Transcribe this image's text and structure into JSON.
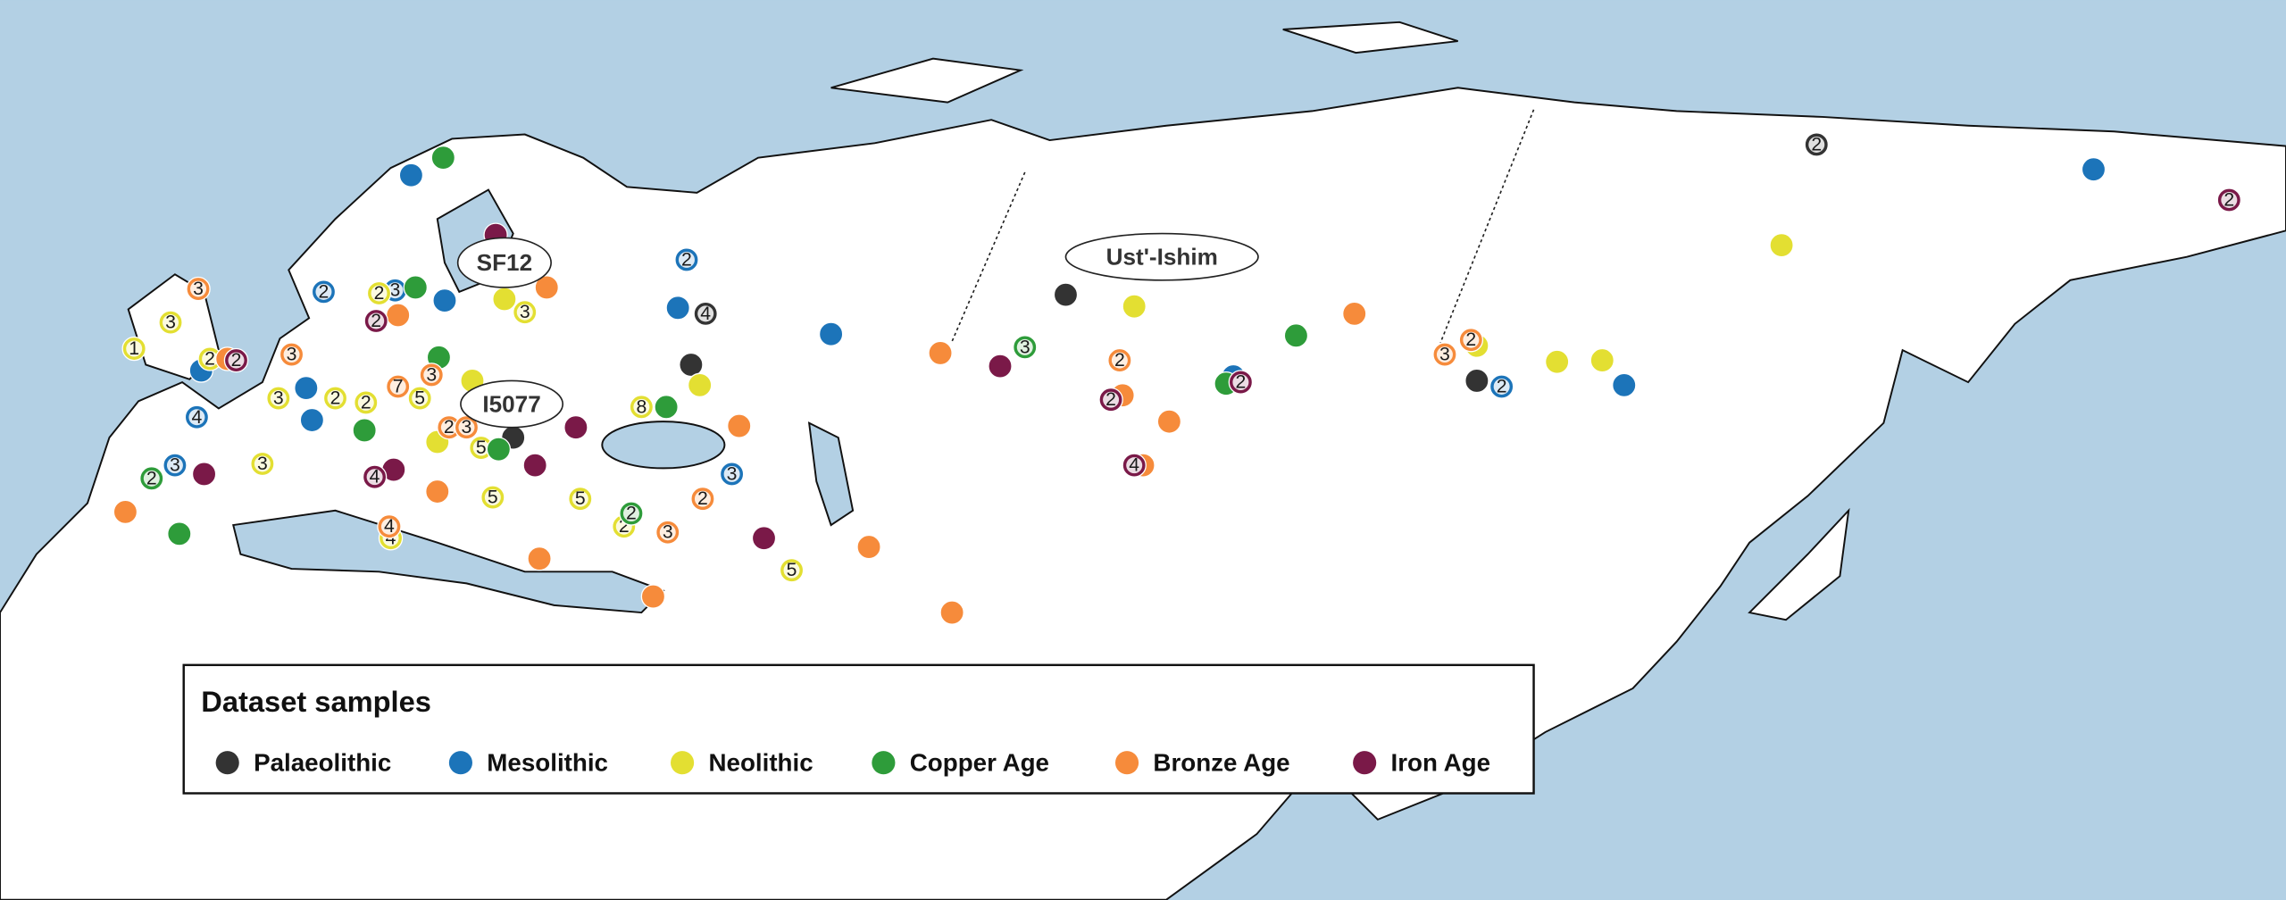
{
  "legend": {
    "title": "Dataset samples",
    "items": [
      {
        "label": "Palaeolithic",
        "color": "#333333",
        "samples": [
          null,
          4,
          null,
          null,
          null,
          2
        ]
      },
      {
        "label": "Mesolithic",
        "color": "#1c74b9",
        "samples": [
          null,
          2,
          null,
          2,
          3,
          null,
          null,
          null,
          null,
          null,
          4,
          3,
          3,
          null,
          2,
          null,
          null
        ]
      },
      {
        "label": "Neolithic",
        "color": "#e3df32",
        "samples": [
          null,
          null,
          3,
          null,
          null,
          null,
          5,
          5,
          5,
          2,
          5,
          null,
          null,
          null,
          2,
          2,
          5,
          3,
          1,
          2,
          3,
          3,
          4,
          8,
          2,
          null
        ]
      },
      {
        "label": "Copper Age",
        "color": "#2e9c3a",
        "samples": [
          null,
          null,
          3,
          null,
          null,
          null,
          null,
          null,
          2,
          null,
          2,
          null
        ]
      },
      {
        "label": "Bronze Age",
        "color": "#f68b3b",
        "samples": [
          3,
          null,
          3,
          null,
          7,
          3,
          2,
          3,
          null,
          2,
          null,
          3,
          2,
          null,
          null,
          null,
          null,
          null,
          2,
          3,
          4,
          null,
          null,
          null,
          null,
          null,
          null
        ]
      },
      {
        "label": "Iron Age",
        "color": "#7a1948",
        "samples": [
          null,
          2,
          2,
          null,
          null,
          null,
          4,
          null,
          null,
          2,
          2,
          4,
          null,
          2
        ]
      }
    ]
  },
  "callouts": [
    "SF12",
    "Ust'-Ishim",
    "I5077"
  ]
}
